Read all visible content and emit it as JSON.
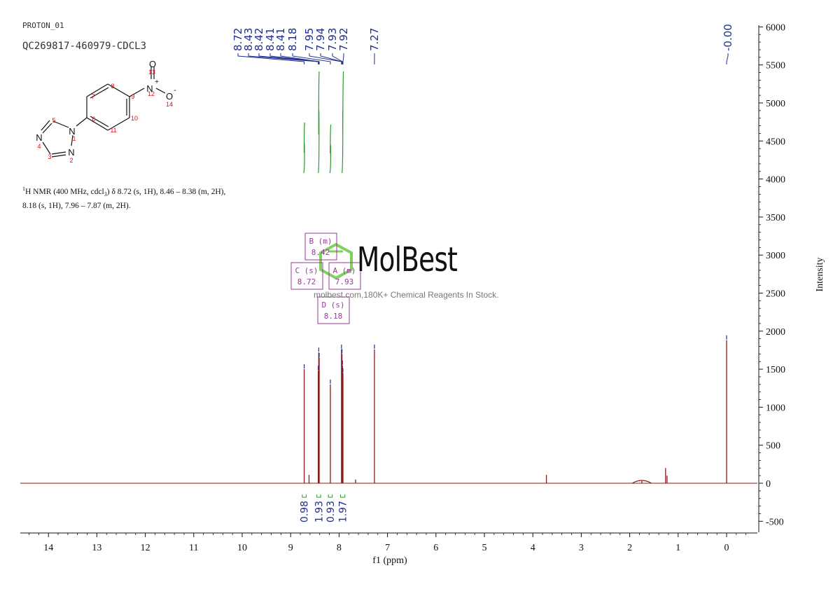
{
  "header": {
    "experiment": "PROTON_01",
    "sample": "QC269817-460979-CDCL3"
  },
  "nmr_text": {
    "line1_prefix": "1",
    "line1": "H NMR (400 MHz, cdcl",
    "line1_sub": "3",
    "line1_rest": ") δ 8.72 (s, 1H), 8.46 – 8.38 (m, 2H),",
    "line2": "8.18 (s, 1H), 7.96 – 7.87 (m, 2H)."
  },
  "structure": {
    "atom_labels": [
      "N",
      "N",
      "N",
      "N",
      "O",
      "O",
      "+",
      "-"
    ],
    "atom_numbers": [
      "1",
      "2",
      "3",
      "4",
      "5",
      "6",
      "7",
      "8",
      "9",
      "10",
      "11",
      "12",
      "13",
      "14"
    ]
  },
  "watermark": {
    "brand": "MolBest",
    "tagline": "molbest.com,180K+ Chemical Reagents In Stock."
  },
  "multiplets": [
    {
      "label": "B (m)",
      "shift": "8.42"
    },
    {
      "label": "C (s)",
      "shift": "8.72"
    },
    {
      "label": "A (m)",
      "shift": "7.93"
    },
    {
      "label": "D (s)",
      "shift": "8.18"
    }
  ],
  "colors": {
    "spectrum": "#8b1a1a",
    "peak_labels": "#1f2f8f",
    "integral_curve": "#2a9a2a",
    "multiplet_box": "#9a3a9a",
    "watermark_icon": "#7dd35a"
  },
  "chart_data": {
    "type": "line",
    "title": "",
    "xlabel": "f1 (ppm)",
    "ylabel": "Intensity",
    "xlim": [
      14.5,
      -0.6
    ],
    "ylim": [
      -600,
      6100
    ],
    "x_reversed": true,
    "x_ticks": [
      14,
      13,
      12,
      11,
      10,
      9,
      8,
      7,
      6,
      5,
      4,
      3,
      2,
      1,
      0
    ],
    "y_ticks": [
      6000,
      5500,
      5000,
      4500,
      4000,
      3500,
      3000,
      2500,
      2000,
      1500,
      1000,
      500,
      0,
      -500
    ],
    "peak_labels": [
      "8.72",
      "8.43",
      "8.42",
      "8.41",
      "8.41",
      "8.18",
      "7.95",
      "7.94",
      "7.93",
      "7.92",
      "7.27",
      "-0.00"
    ],
    "peaks": [
      {
        "x": 8.72,
        "y": 1500
      },
      {
        "x": 8.62,
        "y": 110
      },
      {
        "x": 8.43,
        "y": 1480
      },
      {
        "x": 8.42,
        "y": 1720
      },
      {
        "x": 8.41,
        "y": 1650
      },
      {
        "x": 8.18,
        "y": 1300
      },
      {
        "x": 7.95,
        "y": 1760
      },
      {
        "x": 7.94,
        "y": 1700
      },
      {
        "x": 7.93,
        "y": 1550
      },
      {
        "x": 7.92,
        "y": 1450
      },
      {
        "x": 7.66,
        "y": 50
      },
      {
        "x": 7.27,
        "y": 1760
      },
      {
        "x": 3.72,
        "y": 110
      },
      {
        "x": 1.75,
        "y": 30
      },
      {
        "x": 1.26,
        "y": 200
      },
      {
        "x": 1.23,
        "y": 100
      },
      {
        "x": 0.0,
        "y": 1880
      }
    ],
    "integrals": [
      {
        "from": 8.76,
        "to": 8.68,
        "value": "0.98"
      },
      {
        "from": 8.46,
        "to": 8.38,
        "value": "1.93"
      },
      {
        "from": 8.22,
        "to": 8.14,
        "value": "0.93"
      },
      {
        "from": 7.97,
        "to": 7.88,
        "value": "1.97"
      }
    ]
  }
}
